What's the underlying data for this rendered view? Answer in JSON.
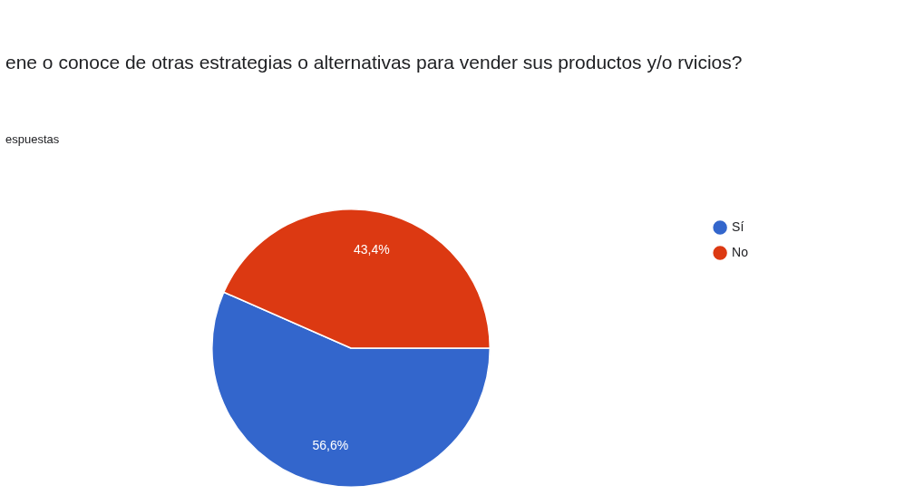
{
  "chart_data": {
    "type": "pie",
    "title": "ene o conoce de otras estrategias o alternativas para vender sus productos y/o rvicios?",
    "subtitle": "espuestas",
    "categories": [
      "Sí",
      "No"
    ],
    "values": [
      56.6,
      43.4
    ],
    "colors": [
      "#3366cc",
      "#dc3912"
    ],
    "value_labels": [
      "56,6%",
      "43,4%"
    ],
    "legend": "right"
  }
}
